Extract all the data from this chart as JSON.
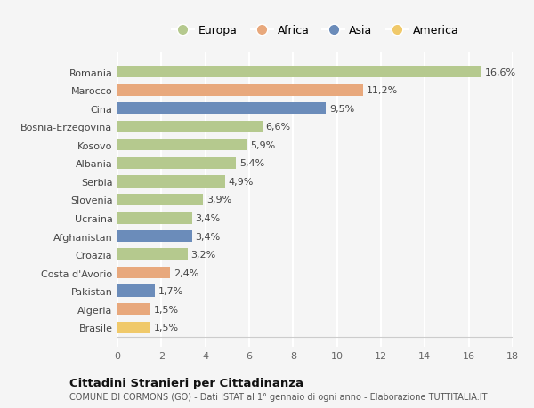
{
  "countries": [
    "Romania",
    "Marocco",
    "Cina",
    "Bosnia-Erzegovina",
    "Kosovo",
    "Albania",
    "Serbia",
    "Slovenia",
    "Ucraina",
    "Afghanistan",
    "Croazia",
    "Costa d'Avorio",
    "Pakistan",
    "Algeria",
    "Brasile"
  ],
  "values": [
    16.6,
    11.2,
    9.5,
    6.6,
    5.9,
    5.4,
    4.9,
    3.9,
    3.4,
    3.4,
    3.2,
    2.4,
    1.7,
    1.5,
    1.5
  ],
  "labels": [
    "16,6%",
    "11,2%",
    "9,5%",
    "6,6%",
    "5,9%",
    "5,4%",
    "4,9%",
    "3,9%",
    "3,4%",
    "3,4%",
    "3,2%",
    "2,4%",
    "1,7%",
    "1,5%",
    "1,5%"
  ],
  "continents": [
    "Europa",
    "Africa",
    "Asia",
    "Europa",
    "Europa",
    "Europa",
    "Europa",
    "Europa",
    "Europa",
    "Asia",
    "Europa",
    "Africa",
    "Asia",
    "Africa",
    "America"
  ],
  "colors": {
    "Europa": "#b5c98e",
    "Africa": "#e8a87c",
    "Asia": "#6b8cba",
    "America": "#f0c96a"
  },
  "legend_order": [
    "Europa",
    "Africa",
    "Asia",
    "America"
  ],
  "title": "Cittadini Stranieri per Cittadinanza",
  "subtitle": "COMUNE DI CORMONS (GO) - Dati ISTAT al 1° gennaio di ogni anno - Elaborazione TUTTITALIA.IT",
  "xlim": [
    0,
    18
  ],
  "xticks": [
    0,
    2,
    4,
    6,
    8,
    10,
    12,
    14,
    16,
    18
  ],
  "bg_color": "#f5f5f5",
  "grid_color": "#ffffff",
  "bar_height": 0.65,
  "label_fontsize": 8,
  "ytick_fontsize": 8,
  "xtick_fontsize": 8
}
